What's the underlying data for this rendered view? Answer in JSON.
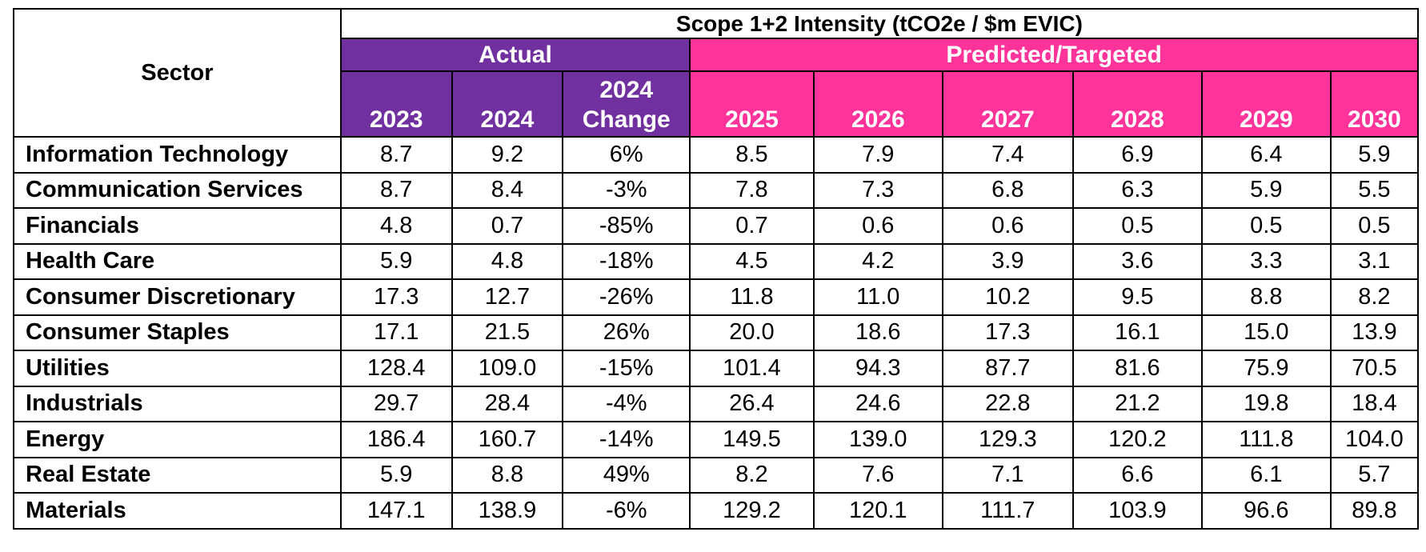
{
  "table": {
    "sector_header": "Sector",
    "main_header": "Scope 1+2 Intensity (tCO2e / $m EVIC)",
    "groups": [
      {
        "label": "Actual",
        "color": "#7030a0",
        "span": 3
      },
      {
        "label": "Predicted/Targeted",
        "color": "#ff3399",
        "span": 6
      }
    ],
    "columns": [
      {
        "label": "2023",
        "group": 0
      },
      {
        "label": "2024",
        "group": 0
      },
      {
        "label": "2024\nChange",
        "group": 0
      },
      {
        "label": "2025",
        "group": 1
      },
      {
        "label": "2026",
        "group": 1
      },
      {
        "label": "2027",
        "group": 1
      },
      {
        "label": "2028",
        "group": 1
      },
      {
        "label": "2029",
        "group": 1
      },
      {
        "label": "2030",
        "group": 1
      }
    ],
    "rows": [
      {
        "sector": "Information Technology",
        "values": [
          "8.7",
          "9.2",
          "6%",
          "8.5",
          "7.9",
          "7.4",
          "6.9",
          "6.4",
          "5.9"
        ]
      },
      {
        "sector": "Communication Services",
        "values": [
          "8.7",
          "8.4",
          "-3%",
          "7.8",
          "7.3",
          "6.8",
          "6.3",
          "5.9",
          "5.5"
        ]
      },
      {
        "sector": "Financials",
        "values": [
          "4.8",
          "0.7",
          "-85%",
          "0.7",
          "0.6",
          "0.6",
          "0.5",
          "0.5",
          "0.5"
        ]
      },
      {
        "sector": "Health Care",
        "values": [
          "5.9",
          "4.8",
          "-18%",
          "4.5",
          "4.2",
          "3.9",
          "3.6",
          "3.3",
          "3.1"
        ]
      },
      {
        "sector": "Consumer Discretionary",
        "values": [
          "17.3",
          "12.7",
          "-26%",
          "11.8",
          "11.0",
          "10.2",
          "9.5",
          "8.8",
          "8.2"
        ]
      },
      {
        "sector": "Consumer Staples",
        "values": [
          "17.1",
          "21.5",
          "26%",
          "20.0",
          "18.6",
          "17.3",
          "16.1",
          "15.0",
          "13.9"
        ]
      },
      {
        "sector": "Utilities",
        "values": [
          "128.4",
          "109.0",
          "-15%",
          "101.4",
          "94.3",
          "87.7",
          "81.6",
          "75.9",
          "70.5"
        ]
      },
      {
        "sector": "Industrials",
        "values": [
          "29.7",
          "28.4",
          "-4%",
          "26.4",
          "24.6",
          "22.8",
          "21.2",
          "19.8",
          "18.4"
        ]
      },
      {
        "sector": "Energy",
        "values": [
          "186.4",
          "160.7",
          "-14%",
          "149.5",
          "139.0",
          "129.3",
          "120.2",
          "111.8",
          "104.0"
        ]
      },
      {
        "sector": "Real Estate",
        "values": [
          "5.9",
          "8.8",
          "49%",
          "8.2",
          "7.6",
          "7.1",
          "6.6",
          "6.1",
          "5.7"
        ]
      },
      {
        "sector": "Materials",
        "values": [
          "147.1",
          "138.9",
          "-6%",
          "129.2",
          "120.1",
          "111.7",
          "103.9",
          "96.6",
          "89.8"
        ]
      }
    ]
  }
}
